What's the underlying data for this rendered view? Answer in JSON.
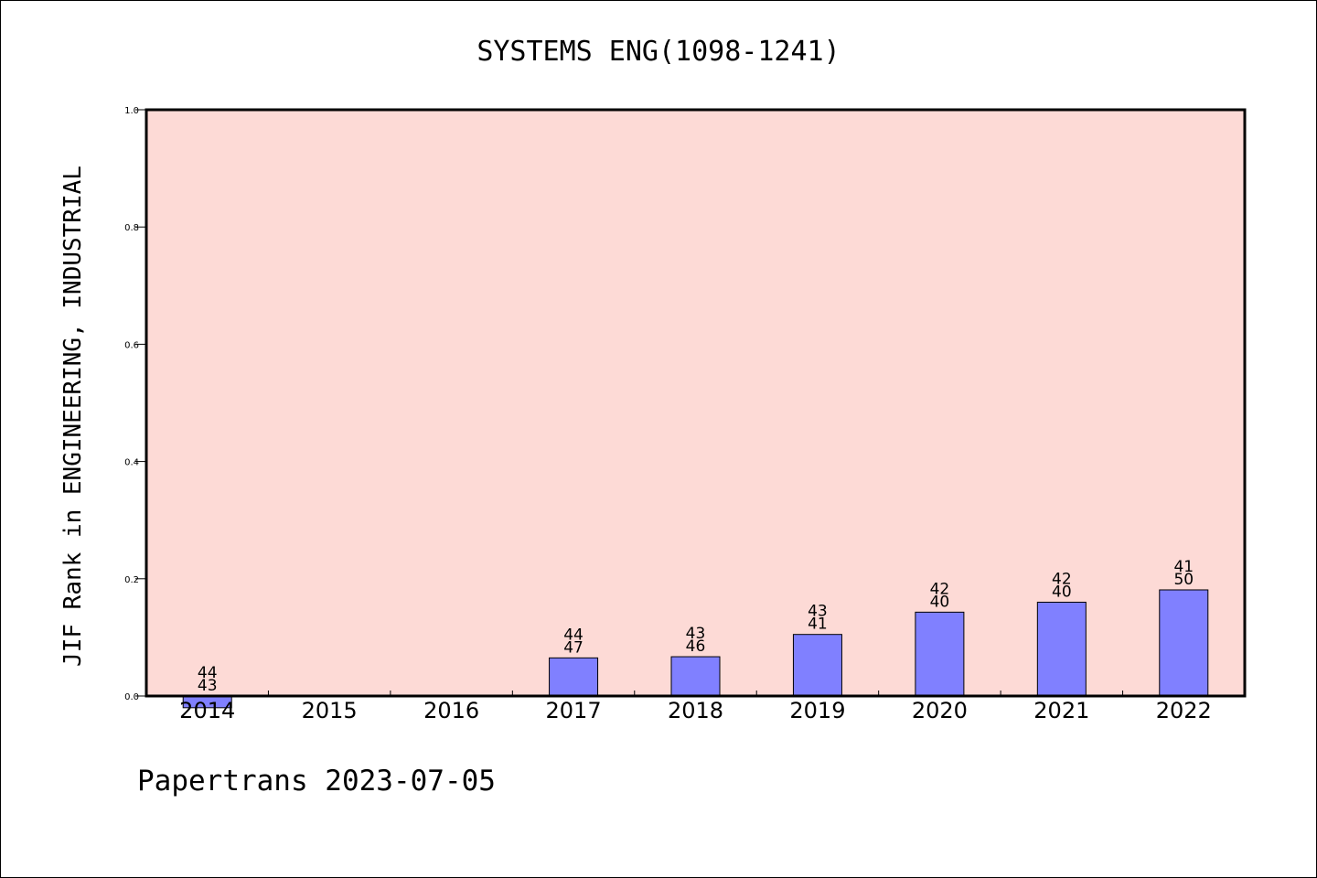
{
  "chart_data": {
    "type": "bar",
    "title": "SYSTEMS ENG(1098-1241)",
    "ylabel": "JIF Rank in ENGINEERING, INDUSTRIAL",
    "xlabel": "",
    "categories": [
      "2014",
      "2015",
      "2016",
      "2017",
      "2018",
      "2019",
      "2020",
      "2021",
      "2022"
    ],
    "values": [
      -0.02,
      null,
      null,
      0.065,
      0.067,
      0.105,
      0.143,
      0.16,
      0.181
    ],
    "bar_labels": [
      [
        "44",
        "43"
      ],
      [],
      [],
      [
        "44",
        "47"
      ],
      [
        "43",
        "46"
      ],
      [
        "43",
        "41"
      ],
      [
        "42",
        "40"
      ],
      [
        "42",
        "40"
      ],
      [
        "41",
        "50"
      ]
    ],
    "ylim": [
      0.0,
      1.0
    ],
    "yticks": [
      "0.0",
      "0.2",
      "0.4",
      "0.6",
      "0.8",
      "1.0"
    ],
    "grid": false,
    "colors": {
      "plot_background": "#fddad6",
      "bar_fill": "#8080ff",
      "bar_stroke": "#000000"
    }
  },
  "footer": {
    "source_text": "Papertrans 2023-07-05"
  }
}
